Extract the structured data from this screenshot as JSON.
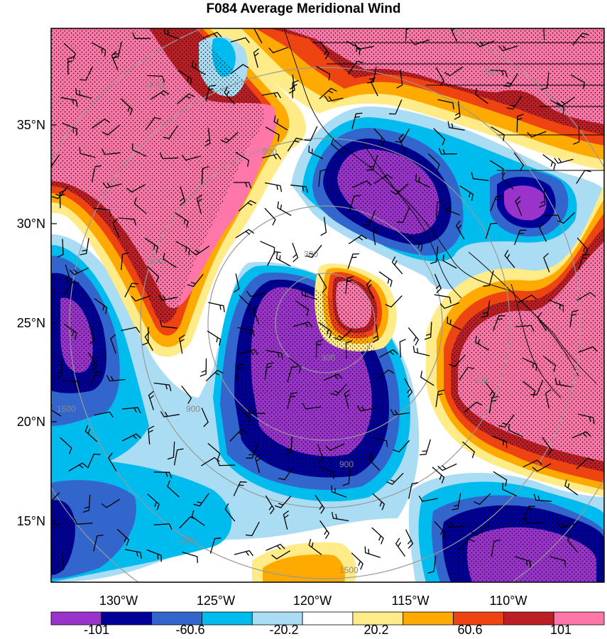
{
  "title": "F084 Average Meridional Wind",
  "map": {
    "latitude_labels": [
      "35°N",
      "30°N",
      "25°N",
      "20°N",
      "15°N"
    ],
    "longitude_labels": [
      "130°W",
      "125°W",
      "120°W",
      "115°W",
      "110°W"
    ],
    "range_ring_labels": [
      "300",
      "300",
      "900",
      "900",
      "900",
      "900",
      "900",
      "1500",
      "1500",
      "1500",
      "1500",
      "1500"
    ]
  },
  "colorbar": {
    "labels": [
      "-101",
      "-60.6",
      "-20.2",
      "20.2",
      "60.6",
      "101"
    ],
    "colors": [
      "#9933cc",
      "#000099",
      "#3366cc",
      "#00bbee",
      "#aaddf4",
      "#ffffff",
      "#ffeb88",
      "#ffaa00",
      "#ee4411",
      "#bb1f24",
      "#ff77a8"
    ]
  }
}
